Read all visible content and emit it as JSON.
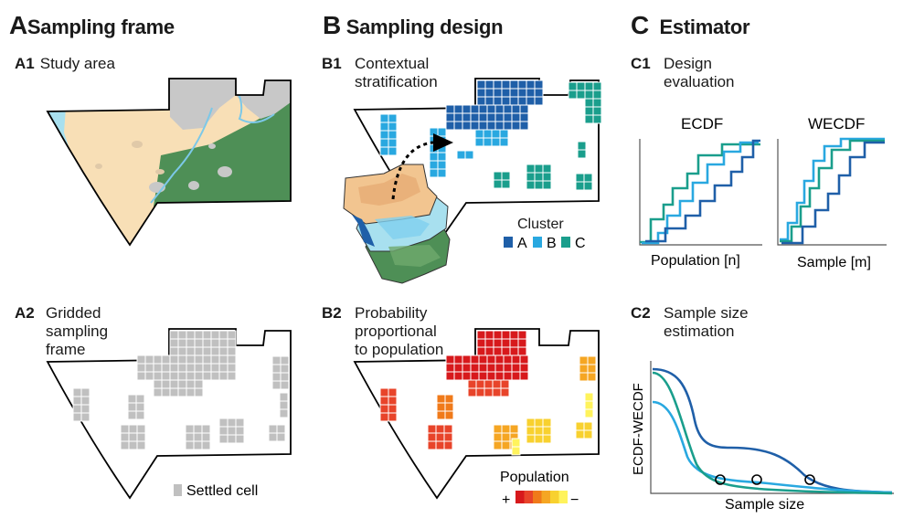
{
  "sections": {
    "a": {
      "letter": "A",
      "title": "Sampling frame"
    },
    "b": {
      "letter": "B",
      "title": "Sampling design"
    },
    "c": {
      "letter": "C",
      "title": "Estimator"
    }
  },
  "panels": {
    "a1": {
      "id": "A1",
      "text": "Study area"
    },
    "a2": {
      "id": "A2",
      "lines": [
        "Gridded",
        "sampling",
        "frame"
      ]
    },
    "b1": {
      "id": "B1",
      "lines": [
        "Contextual",
        "stratification"
      ]
    },
    "b2": {
      "id": "B2",
      "lines": [
        "Probability",
        "proportional",
        "to population"
      ]
    },
    "c1": {
      "id": "C1",
      "lines": [
        "Design",
        "evaluation"
      ]
    },
    "c2": {
      "id": "C2",
      "lines": [
        "Sample size",
        "estimation"
      ]
    }
  },
  "legends": {
    "settled": "Settled cell",
    "cluster": {
      "title": "Cluster",
      "items": [
        {
          "label": "A",
          "color": "#1f5fa8"
        },
        {
          "label": "B",
          "color": "#29a8e0"
        },
        {
          "label": "C",
          "color": "#1a9e8c"
        }
      ]
    },
    "population": {
      "title": "Population",
      "plus": "+",
      "minus": "−",
      "colors": [
        "#d7191c",
        "#e8442a",
        "#f07a1a",
        "#f5a623",
        "#f8d12f",
        "#fff35c"
      ]
    }
  },
  "ecdf": {
    "title": "ECDF",
    "xlabel": "Population [n]"
  },
  "wecdf": {
    "title": "WECDF",
    "xlabel": "Sample [m]"
  },
  "c2plot": {
    "ylabel": "ECDF-WECDF",
    "xlabel": "Sample size"
  },
  "colors": {
    "land": "#f8dfb6",
    "forest": "#4e8f56",
    "water": "#a8e0ef",
    "urban": "#c8c8c8",
    "navy": "#1f5fa8",
    "sky": "#29a8e0",
    "teal": "#1a9e8c"
  }
}
